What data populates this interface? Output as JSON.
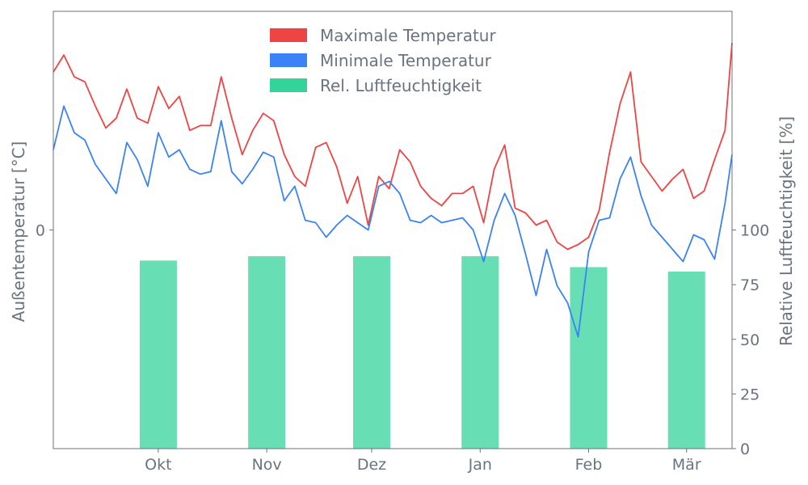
{
  "chart_data": {
    "type": "bar+line",
    "title": "",
    "xlabel": "",
    "y_left_label": "Außentemperatur [°C]",
    "y_right_label": "Relative Luftfeuchtigkeit [%]",
    "y_left_ticks": [
      "0"
    ],
    "y_left_lim": [
      -9,
      9
    ],
    "y_right_lim": [
      0,
      200
    ],
    "y_right_ticks": [
      0,
      25,
      50,
      75,
      100
    ],
    "x_tick_labels": [
      "Okt",
      "Nov",
      "Dez",
      "Jan",
      "Feb",
      "Mär"
    ],
    "x_tick_dates": [
      "2022-10-01",
      "2022-11-01",
      "2022-12-01",
      "2023-01-01",
      "2023-02-01",
      "2023-03-01"
    ],
    "x_range": [
      "2022-09-01",
      "2023-03-14"
    ],
    "grid": false,
    "legend_position": "top-center",
    "colors": {
      "max": "#ef4444",
      "min": "#3b82f6",
      "humidity": "#34d399",
      "axis": "#6b7280"
    },
    "legend": [
      "Maximale Temperatur",
      "Minimale Temperatur",
      "Rel. Luftfeuchtigkeit"
    ],
    "humidity_bars": {
      "categories": [
        "Okt",
        "Nov",
        "Dez",
        "Jan",
        "Feb",
        "Mär"
      ],
      "values": [
        86,
        88,
        88,
        88,
        83,
        81
      ]
    },
    "series": [
      {
        "name": "Maximale Temperatur",
        "dates": [
          "2022-09-01",
          "2022-09-04",
          "2022-09-07",
          "2022-09-10",
          "2022-09-13",
          "2022-09-16",
          "2022-09-19",
          "2022-09-22",
          "2022-09-25",
          "2022-09-28",
          "2022-10-01",
          "2022-10-04",
          "2022-10-07",
          "2022-10-10",
          "2022-10-13",
          "2022-10-16",
          "2022-10-19",
          "2022-10-22",
          "2022-10-25",
          "2022-10-28",
          "2022-10-31",
          "2022-11-03",
          "2022-11-06",
          "2022-11-09",
          "2022-11-12",
          "2022-11-15",
          "2022-11-18",
          "2022-11-21",
          "2022-11-24",
          "2022-11-27",
          "2022-11-30",
          "2022-12-03",
          "2022-12-06",
          "2022-12-09",
          "2022-12-12",
          "2022-12-15",
          "2022-12-18",
          "2022-12-21",
          "2022-12-24",
          "2022-12-27",
          "2022-12-30",
          "2023-01-02",
          "2023-01-05",
          "2023-01-08",
          "2023-01-11",
          "2023-01-14",
          "2023-01-17",
          "2023-01-20",
          "2023-01-23",
          "2023-01-26",
          "2023-01-29",
          "2023-02-01",
          "2023-02-04",
          "2023-02-07",
          "2023-02-10",
          "2023-02-13",
          "2023-02-16",
          "2023-02-19",
          "2023-02-22",
          "2023-02-25",
          "2023-02-28",
          "2023-03-03",
          "2023-03-06",
          "2023-03-09",
          "2023-03-12",
          "2023-03-14"
        ],
        "values": [
          6.5,
          7.2,
          6.3,
          6.1,
          5.1,
          4.2,
          4.6,
          5.8,
          4.6,
          4.4,
          5.9,
          5.0,
          5.5,
          4.1,
          4.3,
          4.3,
          6.3,
          4.6,
          3.1,
          4.1,
          4.8,
          4.5,
          3.1,
          2.2,
          1.8,
          3.4,
          3.6,
          2.6,
          1.1,
          2.2,
          0.2,
          2.2,
          1.7,
          3.3,
          2.8,
          1.8,
          1.3,
          1.0,
          1.5,
          1.5,
          1.8,
          0.3,
          2.5,
          3.5,
          0.9,
          0.7,
          0.2,
          0.4,
          -0.5,
          -0.8,
          -0.6,
          -0.3,
          0.8,
          3.2,
          5.2,
          6.5,
          2.8,
          2.2,
          1.6,
          2.1,
          2.5,
          1.3,
          1.6,
          2.9,
          4.1,
          7.7
        ]
      },
      {
        "name": "Minimale Temperatur",
        "dates": [
          "2022-09-01",
          "2022-09-04",
          "2022-09-07",
          "2022-09-10",
          "2022-09-13",
          "2022-09-16",
          "2022-09-19",
          "2022-09-22",
          "2022-09-25",
          "2022-09-28",
          "2022-10-01",
          "2022-10-04",
          "2022-10-07",
          "2022-10-10",
          "2022-10-13",
          "2022-10-16",
          "2022-10-19",
          "2022-10-22",
          "2022-10-25",
          "2022-10-28",
          "2022-10-31",
          "2022-11-03",
          "2022-11-06",
          "2022-11-09",
          "2022-11-12",
          "2022-11-15",
          "2022-11-18",
          "2022-11-21",
          "2022-11-24",
          "2022-11-27",
          "2022-11-30",
          "2022-12-03",
          "2022-12-06",
          "2022-12-09",
          "2022-12-12",
          "2022-12-15",
          "2022-12-18",
          "2022-12-21",
          "2022-12-24",
          "2022-12-27",
          "2022-12-30",
          "2023-01-02",
          "2023-01-05",
          "2023-01-08",
          "2023-01-11",
          "2023-01-14",
          "2023-01-17",
          "2023-01-20",
          "2023-01-23",
          "2023-01-26",
          "2023-01-29",
          "2023-02-01",
          "2023-02-04",
          "2023-02-07",
          "2023-02-10",
          "2023-02-13",
          "2023-02-16",
          "2023-02-19",
          "2023-02-22",
          "2023-02-25",
          "2023-02-28",
          "2023-03-03",
          "2023-03-06",
          "2023-03-09",
          "2023-03-12",
          "2023-03-14"
        ],
        "values": [
          3.3,
          5.1,
          4.0,
          3.7,
          2.7,
          2.1,
          1.5,
          3.6,
          2.9,
          1.8,
          4.0,
          3.0,
          3.3,
          2.5,
          2.3,
          2.4,
          4.5,
          2.4,
          1.9,
          2.5,
          3.2,
          3.0,
          1.2,
          1.8,
          0.4,
          0.3,
          -0.3,
          0.2,
          0.6,
          0.3,
          0.0,
          1.8,
          2.0,
          1.5,
          0.4,
          0.3,
          0.6,
          0.3,
          0.4,
          0.5,
          0.0,
          -1.3,
          0.4,
          1.5,
          0.6,
          -1.0,
          -2.7,
          -0.8,
          -2.3,
          -3.0,
          -4.4,
          -0.9,
          0.4,
          0.5,
          2.1,
          3.0,
          1.4,
          0.2,
          -0.3,
          -0.8,
          -1.3,
          -0.2,
          -0.4,
          -1.2,
          1.1,
          3.1
        ]
      }
    ]
  }
}
